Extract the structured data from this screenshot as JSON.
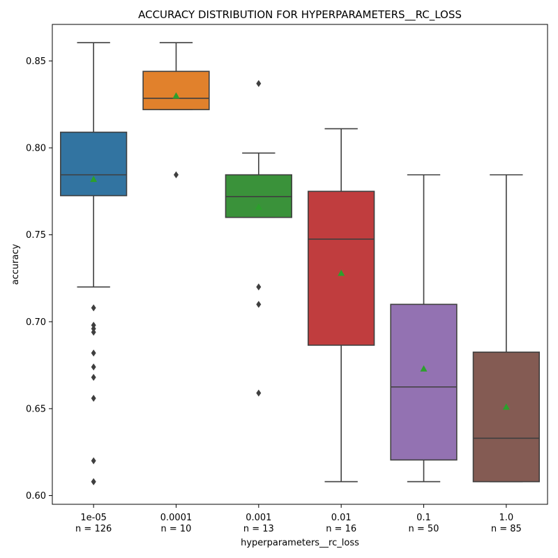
{
  "chart_data": {
    "type": "box",
    "title": "ACCURACY DISTRIBUTION FOR HYPERPARAMETERS__RC_LOSS",
    "xlabel": "hyperparameters__rc_loss",
    "ylabel": "accuracy",
    "ylim": [
      0.595,
      0.871
    ],
    "yticks": [
      0.6,
      0.65,
      0.7,
      0.75,
      0.8,
      0.85
    ],
    "ytick_labels": [
      "0.60",
      "0.65",
      "0.70",
      "0.75",
      "0.80",
      "0.85"
    ],
    "grid": false,
    "legend": "none",
    "groups": [
      {
        "category": "1e-05",
        "count_label": "n = 126",
        "color": "#3274a1",
        "whisker_low": 0.72,
        "q1": 0.7725,
        "median": 0.7845,
        "q3": 0.809,
        "whisker_high": 0.8605,
        "mean": 0.782,
        "outliers": [
          0.708,
          0.698,
          0.696,
          0.694,
          0.682,
          0.674,
          0.668,
          0.656,
          0.62,
          0.608,
          0.608
        ]
      },
      {
        "category": "0.0001",
        "count_label": "n = 10",
        "color": "#e1812c",
        "whisker_low": 0.822,
        "q1": 0.822,
        "median": 0.8285,
        "q3": 0.844,
        "whisker_high": 0.8605,
        "mean": 0.83,
        "outliers": [
          0.7845
        ]
      },
      {
        "category": "0.001",
        "count_label": "n = 13",
        "color": "#3a923a",
        "whisker_low": 0.76,
        "q1": 0.76,
        "median": 0.772,
        "q3": 0.7845,
        "whisker_high": 0.797,
        "mean": 0.766,
        "outliers": [
          0.837,
          0.72,
          0.71,
          0.659
        ]
      },
      {
        "category": "0.01",
        "count_label": "n = 16",
        "color": "#c03d3e",
        "whisker_low": 0.608,
        "q1": 0.6865,
        "median": 0.7475,
        "q3": 0.775,
        "whisker_high": 0.811,
        "mean": 0.728,
        "outliers": []
      },
      {
        "category": "0.1",
        "count_label": "n = 50",
        "color": "#9372b2",
        "whisker_low": 0.608,
        "q1": 0.6205,
        "median": 0.6625,
        "q3": 0.71,
        "whisker_high": 0.7845,
        "mean": 0.673,
        "outliers": []
      },
      {
        "category": "1.0",
        "count_label": "n = 85",
        "color": "#845b53",
        "whisker_low": 0.608,
        "q1": 0.608,
        "median": 0.633,
        "q3": 0.6825,
        "whisker_high": 0.7845,
        "mean": 0.651,
        "outliers": []
      }
    ],
    "colors": {
      "line": "#3f3f3f",
      "mean_marker": "#2ca02c",
      "axis": "#000000"
    }
  }
}
